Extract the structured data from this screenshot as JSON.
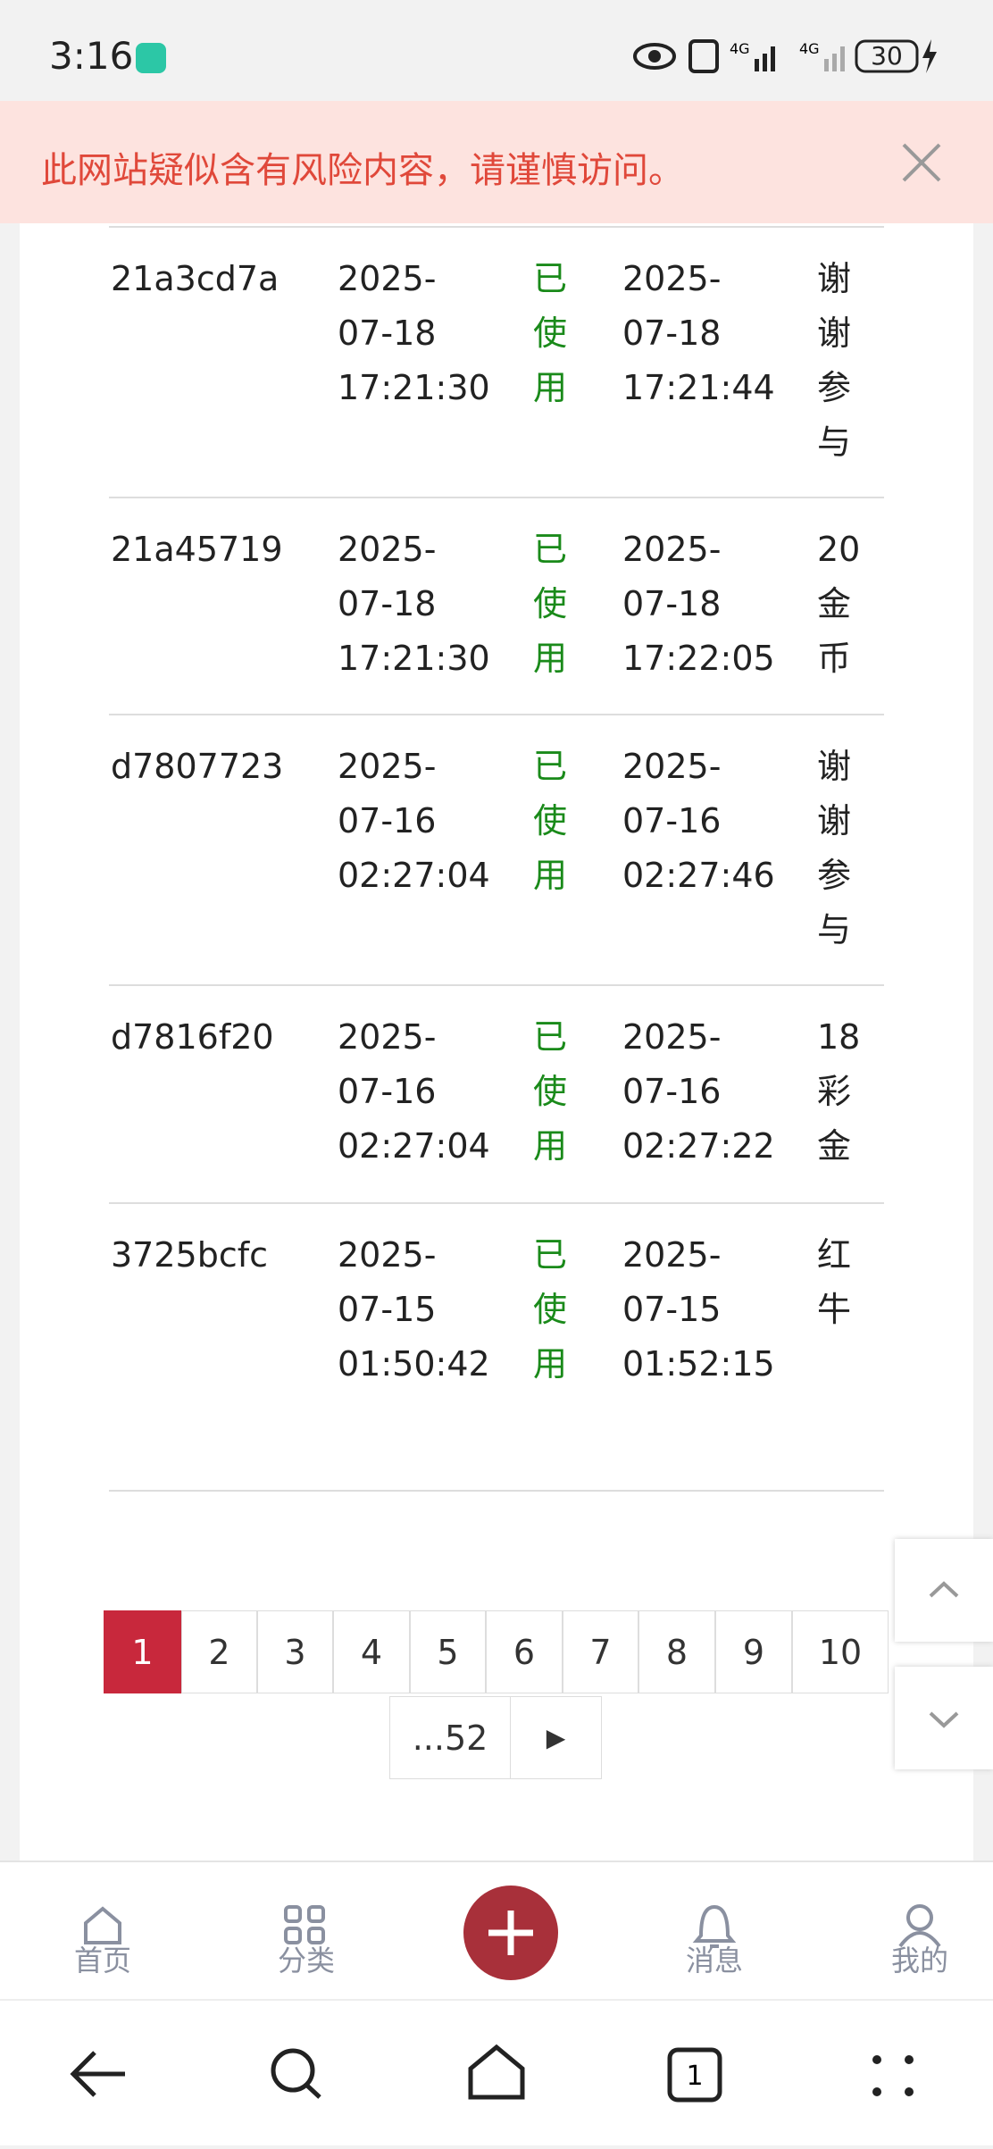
{
  "status_bar": {
    "time": "3:16",
    "battery": "30"
  },
  "banner": {
    "text": "此网站疑似含有风险内容，请谨慎访问。"
  },
  "table": {
    "rows": [
      [
        "21a3cd7a",
        "2025-\n07-18\n17:21:30",
        "已使用",
        "2025-\n07-18\n17:21:44",
        "谢谢参与"
      ],
      [
        "21a45719",
        "2025-\n07-18\n17:21:30",
        "已使用",
        "2025-\n07-18\n17:22:05",
        "20金币"
      ],
      [
        "d7807723",
        "2025-\n07-16\n02:27:04",
        "已使用",
        "2025-\n07-16\n02:27:46",
        "谢谢参与"
      ],
      [
        "d7816f20",
        "2025-\n07-16\n02:27:04",
        "已使用",
        "2025-\n07-16\n02:27:22",
        "18彩金"
      ],
      [
        "3725bcfc",
        "2025-\n07-15\n01:50:42",
        "已使用",
        "2025-\n07-15\n01:52:15",
        "红牛"
      ]
    ]
  },
  "pagination": {
    "pages": [
      "1",
      "2",
      "3",
      "4",
      "5",
      "6",
      "7",
      "8",
      "9",
      "10"
    ],
    "last": "...52",
    "next": "▶"
  },
  "bottom_nav": {
    "items": [
      "首页",
      "分类",
      "消息",
      "我的"
    ]
  }
}
